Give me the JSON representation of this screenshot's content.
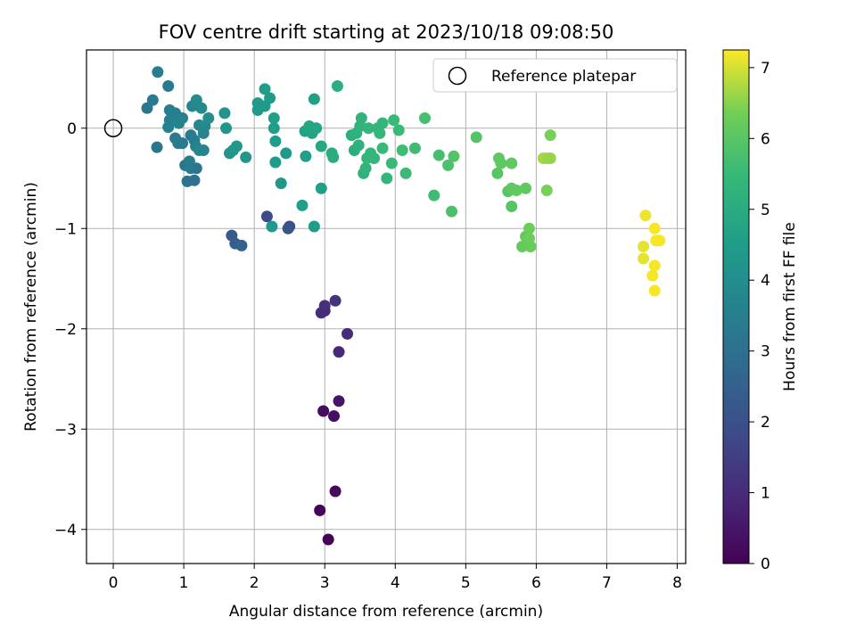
{
  "chart_data": {
    "type": "scatter",
    "title": "FOV centre drift starting at 2023/10/18 09:08:50",
    "xlabel": "Angular distance from reference (arcmin)",
    "ylabel": "Rotation from reference (arcmin)",
    "xlim": [
      -0.38,
      8.12
    ],
    "ylim": [
      -4.34,
      0.78
    ],
    "x_ticks": [
      0,
      1,
      2,
      3,
      4,
      5,
      6,
      7,
      8
    ],
    "y_ticks": [
      -4,
      -3,
      -2,
      -1,
      0
    ],
    "y_tick_labels": [
      "−4",
      "−3",
      "−2",
      "−1",
      "0"
    ],
    "grid": true,
    "legend": {
      "placement": "top-right",
      "entries": [
        "Reference platepar"
      ]
    },
    "reference_point": {
      "x": 0,
      "y": 0,
      "name": "Reference platepar"
    },
    "colorbar": {
      "label": "Hours from first FF file",
      "colormap": "viridis",
      "range": [
        0,
        7.25
      ],
      "ticks": [
        0,
        1,
        2,
        3,
        4,
        5,
        6,
        7
      ]
    },
    "points": [
      {
        "x": 3.05,
        "y": -4.1,
        "h": 0.05
      },
      {
        "x": 2.93,
        "y": -3.81,
        "h": 0.1
      },
      {
        "x": 3.15,
        "y": -3.62,
        "h": 0.2
      },
      {
        "x": 2.98,
        "y": -2.82,
        "h": 0.25
      },
      {
        "x": 3.13,
        "y": -2.87,
        "h": 0.3
      },
      {
        "x": 3.2,
        "y": -2.72,
        "h": 0.45
      },
      {
        "x": 3.2,
        "y": -2.23,
        "h": 0.9
      },
      {
        "x": 3.32,
        "y": -2.05,
        "h": 1.0
      },
      {
        "x": 2.95,
        "y": -1.84,
        "h": 1.0
      },
      {
        "x": 3.0,
        "y": -1.82,
        "h": 1.05
      },
      {
        "x": 3.0,
        "y": -1.77,
        "h": 1.1
      },
      {
        "x": 3.15,
        "y": -1.72,
        "h": 1.2
      },
      {
        "x": 2.18,
        "y": -0.88,
        "h": 1.8
      },
      {
        "x": 2.5,
        "y": -0.98,
        "h": 2.0
      },
      {
        "x": 2.48,
        "y": -1.0,
        "h": 2.1
      },
      {
        "x": 1.68,
        "y": -1.07,
        "h": 2.3
      },
      {
        "x": 1.73,
        "y": -1.15,
        "h": 2.4
      },
      {
        "x": 1.82,
        "y": -1.17,
        "h": 2.5
      },
      {
        "x": 0.63,
        "y": 0.56,
        "h": 3.4
      },
      {
        "x": 0.78,
        "y": 0.42,
        "h": 3.3
      },
      {
        "x": 0.62,
        "y": -0.19,
        "h": 3.2
      },
      {
        "x": 0.48,
        "y": 0.2,
        "h": 3.25
      },
      {
        "x": 0.56,
        "y": 0.28,
        "h": 3.35
      },
      {
        "x": 0.8,
        "y": 0.18,
        "h": 3.5
      },
      {
        "x": 0.88,
        "y": 0.15,
        "h": 3.45
      },
      {
        "x": 0.8,
        "y": 0.08,
        "h": 3.55
      },
      {
        "x": 0.78,
        "y": 0.01,
        "h": 3.6
      },
      {
        "x": 0.88,
        "y": -0.1,
        "h": 3.3
      },
      {
        "x": 0.92,
        "y": -0.15,
        "h": 3.4
      },
      {
        "x": 0.98,
        "y": -0.15,
        "h": 3.3
      },
      {
        "x": 0.98,
        "y": 0.1,
        "h": 3.6
      },
      {
        "x": 0.93,
        "y": 0.05,
        "h": 3.7
      },
      {
        "x": 1.02,
        "y": -0.37,
        "h": 3.2
      },
      {
        "x": 1.1,
        "y": -0.4,
        "h": 3.3
      },
      {
        "x": 1.18,
        "y": -0.4,
        "h": 3.2
      },
      {
        "x": 1.08,
        "y": -0.33,
        "h": 3.4
      },
      {
        "x": 1.05,
        "y": -0.53,
        "h": 3.1
      },
      {
        "x": 1.15,
        "y": -0.52,
        "h": 3.0
      },
      {
        "x": 1.1,
        "y": -0.07,
        "h": 3.4
      },
      {
        "x": 1.15,
        "y": -0.12,
        "h": 3.5
      },
      {
        "x": 1.17,
        "y": -0.18,
        "h": 3.6
      },
      {
        "x": 1.22,
        "y": -0.22,
        "h": 3.8
      },
      {
        "x": 1.28,
        "y": -0.22,
        "h": 3.7
      },
      {
        "x": 1.12,
        "y": 0.22,
        "h": 3.8
      },
      {
        "x": 1.18,
        "y": 0.28,
        "h": 3.9
      },
      {
        "x": 1.25,
        "y": 0.2,
        "h": 3.9
      },
      {
        "x": 1.22,
        "y": 0.03,
        "h": 3.8
      },
      {
        "x": 1.3,
        "y": 0.02,
        "h": 3.9
      },
      {
        "x": 1.35,
        "y": 0.1,
        "h": 4.0
      },
      {
        "x": 1.28,
        "y": -0.05,
        "h": 3.7
      },
      {
        "x": 1.58,
        "y": 0.15,
        "h": 4.2
      },
      {
        "x": 1.6,
        "y": 0.0,
        "h": 4.3
      },
      {
        "x": 1.65,
        "y": -0.25,
        "h": 4.25
      },
      {
        "x": 1.7,
        "y": -0.22,
        "h": 4.3
      },
      {
        "x": 1.75,
        "y": -0.18,
        "h": 4.35
      },
      {
        "x": 1.88,
        "y": -0.29,
        "h": 4.3
      },
      {
        "x": 2.05,
        "y": 0.25,
        "h": 4.4
      },
      {
        "x": 2.05,
        "y": 0.18,
        "h": 4.45
      },
      {
        "x": 2.15,
        "y": 0.22,
        "h": 4.45
      },
      {
        "x": 2.15,
        "y": 0.39,
        "h": 4.5
      },
      {
        "x": 2.22,
        "y": 0.3,
        "h": 4.45
      },
      {
        "x": 2.28,
        "y": 0.1,
        "h": 4.6
      },
      {
        "x": 2.28,
        "y": 0.0,
        "h": 4.55
      },
      {
        "x": 2.3,
        "y": -0.13,
        "h": 4.5
      },
      {
        "x": 2.3,
        "y": -0.34,
        "h": 4.45
      },
      {
        "x": 2.38,
        "y": -0.55,
        "h": 4.3
      },
      {
        "x": 2.45,
        "y": -0.25,
        "h": 4.4
      },
      {
        "x": 2.25,
        "y": -0.98,
        "h": 4.4
      },
      {
        "x": 2.68,
        "y": -0.77,
        "h": 4.6
      },
      {
        "x": 2.85,
        "y": -0.98,
        "h": 4.5
      },
      {
        "x": 2.95,
        "y": -0.6,
        "h": 4.6
      },
      {
        "x": 2.73,
        "y": -0.28,
        "h": 4.6
      },
      {
        "x": 2.72,
        "y": -0.03,
        "h": 4.7
      },
      {
        "x": 2.78,
        "y": 0.02,
        "h": 4.8
      },
      {
        "x": 2.82,
        "y": -0.05,
        "h": 4.7
      },
      {
        "x": 2.88,
        "y": 0.0,
        "h": 4.8
      },
      {
        "x": 2.85,
        "y": 0.29,
        "h": 4.6
      },
      {
        "x": 2.95,
        "y": -0.18,
        "h": 4.9
      },
      {
        "x": 3.1,
        "y": -0.25,
        "h": 5.0
      },
      {
        "x": 3.12,
        "y": -0.29,
        "h": 5.0
      },
      {
        "x": 3.18,
        "y": 0.42,
        "h": 5.1
      },
      {
        "x": 3.38,
        "y": -0.07,
        "h": 5.1
      },
      {
        "x": 3.42,
        "y": -0.22,
        "h": 5.1
      },
      {
        "x": 3.45,
        "y": -0.05,
        "h": 5.2
      },
      {
        "x": 3.48,
        "y": -0.17,
        "h": 5.2
      },
      {
        "x": 3.5,
        "y": 0.02,
        "h": 5.3
      },
      {
        "x": 3.52,
        "y": 0.1,
        "h": 5.3
      },
      {
        "x": 3.55,
        "y": -0.45,
        "h": 5.2
      },
      {
        "x": 3.58,
        "y": -0.4,
        "h": 5.3
      },
      {
        "x": 3.6,
        "y": -0.3,
        "h": 5.4
      },
      {
        "x": 3.62,
        "y": 0.0,
        "h": 5.35
      },
      {
        "x": 3.65,
        "y": -0.25,
        "h": 5.4
      },
      {
        "x": 3.7,
        "y": -0.3,
        "h": 5.35
      },
      {
        "x": 3.75,
        "y": 0.0,
        "h": 5.4
      },
      {
        "x": 3.78,
        "y": -0.05,
        "h": 5.45
      },
      {
        "x": 3.82,
        "y": -0.2,
        "h": 5.5
      },
      {
        "x": 3.82,
        "y": 0.05,
        "h": 5.4
      },
      {
        "x": 3.88,
        "y": -0.5,
        "h": 5.35
      },
      {
        "x": 3.95,
        "y": -0.35,
        "h": 5.5
      },
      {
        "x": 3.98,
        "y": 0.08,
        "h": 5.5
      },
      {
        "x": 4.05,
        "y": -0.02,
        "h": 5.5
      },
      {
        "x": 4.1,
        "y": -0.22,
        "h": 5.6
      },
      {
        "x": 4.15,
        "y": -0.45,
        "h": 5.55
      },
      {
        "x": 4.28,
        "y": -0.2,
        "h": 5.6
      },
      {
        "x": 4.42,
        "y": 0.1,
        "h": 5.7
      },
      {
        "x": 4.55,
        "y": -0.67,
        "h": 5.6
      },
      {
        "x": 4.62,
        "y": -0.27,
        "h": 5.7
      },
      {
        "x": 4.75,
        "y": -0.37,
        "h": 5.8
      },
      {
        "x": 4.8,
        "y": -0.83,
        "h": 5.8
      },
      {
        "x": 4.83,
        "y": -0.28,
        "h": 5.9
      },
      {
        "x": 5.15,
        "y": -0.09,
        "h": 5.95
      },
      {
        "x": 5.45,
        "y": -0.45,
        "h": 6.0
      },
      {
        "x": 5.47,
        "y": -0.3,
        "h": 6.05
      },
      {
        "x": 5.5,
        "y": -0.35,
        "h": 6.1
      },
      {
        "x": 5.6,
        "y": -0.63,
        "h": 6.0
      },
      {
        "x": 5.65,
        "y": -0.6,
        "h": 6.1
      },
      {
        "x": 5.65,
        "y": -0.78,
        "h": 6.0
      },
      {
        "x": 5.65,
        "y": -0.35,
        "h": 6.1
      },
      {
        "x": 5.72,
        "y": -0.62,
        "h": 6.15
      },
      {
        "x": 5.8,
        "y": -1.18,
        "h": 6.2
      },
      {
        "x": 5.85,
        "y": -0.6,
        "h": 6.1
      },
      {
        "x": 5.85,
        "y": -1.08,
        "h": 6.2
      },
      {
        "x": 5.9,
        "y": -1.0,
        "h": 6.3
      },
      {
        "x": 5.9,
        "y": -1.1,
        "h": 6.3
      },
      {
        "x": 5.92,
        "y": -1.18,
        "h": 6.25
      },
      {
        "x": 6.1,
        "y": -0.3,
        "h": 6.7
      },
      {
        "x": 6.15,
        "y": -0.3,
        "h": 6.65
      },
      {
        "x": 6.2,
        "y": -0.3,
        "h": 6.6
      },
      {
        "x": 6.15,
        "y": -0.62,
        "h": 6.4
      },
      {
        "x": 6.2,
        "y": -0.07,
        "h": 6.4
      },
      {
        "x": 7.52,
        "y": -1.3,
        "h": 7.1
      },
      {
        "x": 7.52,
        "y": -1.18,
        "h": 7.1
      },
      {
        "x": 7.55,
        "y": -0.87,
        "h": 7.15
      },
      {
        "x": 7.65,
        "y": -1.47,
        "h": 7.2
      },
      {
        "x": 7.68,
        "y": -1.37,
        "h": 7.2
      },
      {
        "x": 7.68,
        "y": -1.62,
        "h": 7.2
      },
      {
        "x": 7.68,
        "y": -1.0,
        "h": 7.2
      },
      {
        "x": 7.7,
        "y": -1.12,
        "h": 7.2
      },
      {
        "x": 7.75,
        "y": -1.12,
        "h": 7.2
      }
    ]
  }
}
